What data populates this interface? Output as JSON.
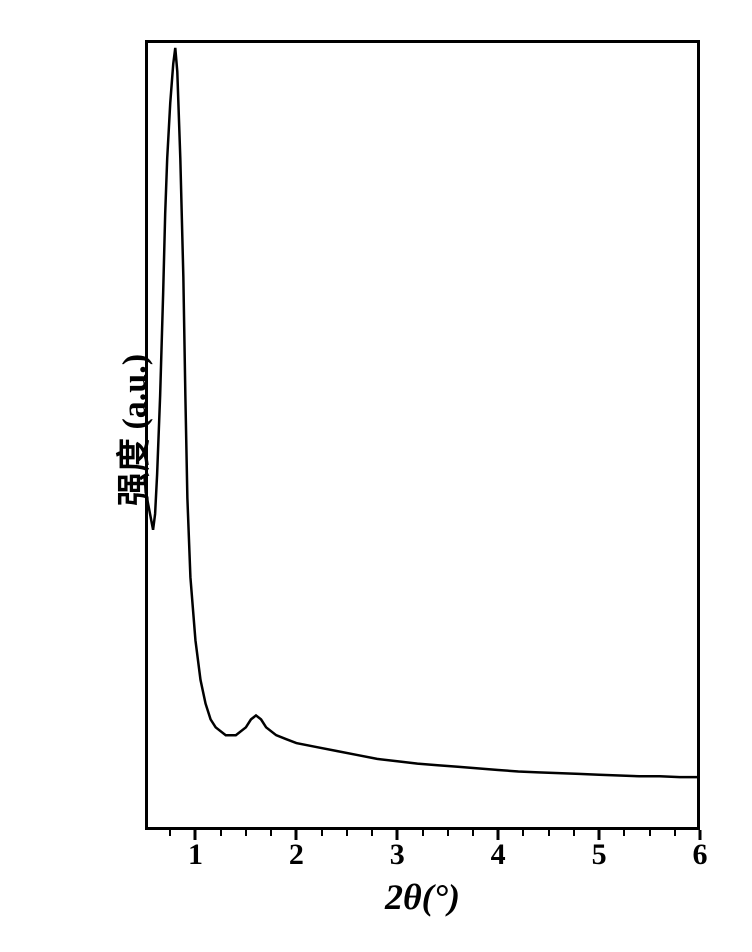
{
  "chart": {
    "type": "line",
    "x_label": "2θ(°)",
    "y_label": "强度 (a.u.)",
    "x_tick_labels": [
      "1",
      "2",
      "3",
      "4",
      "5",
      "6"
    ],
    "x_tick_positions": [
      1,
      2,
      3,
      4,
      5,
      6
    ],
    "x_minor_tick_positions": [
      0.75,
      1.25,
      1.5,
      1.75,
      2.25,
      2.5,
      2.75,
      3.25,
      3.5,
      3.75,
      4.25,
      4.5,
      4.75,
      5.25,
      5.5,
      5.75
    ],
    "xlim": [
      0.5,
      6.0
    ],
    "ylim": [
      0,
      100
    ],
    "line_color": "#000000",
    "line_width": 2.5,
    "background_color": "#ffffff",
    "border_color": "#000000",
    "border_width": 3,
    "label_fontsize": 34,
    "tick_fontsize": 30,
    "data_points": [
      {
        "x": 0.52,
        "y": 42
      },
      {
        "x": 0.55,
        "y": 40
      },
      {
        "x": 0.58,
        "y": 38
      },
      {
        "x": 0.6,
        "y": 40
      },
      {
        "x": 0.62,
        "y": 45
      },
      {
        "x": 0.65,
        "y": 55
      },
      {
        "x": 0.68,
        "y": 68
      },
      {
        "x": 0.7,
        "y": 78
      },
      {
        "x": 0.72,
        "y": 85
      },
      {
        "x": 0.75,
        "y": 92
      },
      {
        "x": 0.78,
        "y": 97
      },
      {
        "x": 0.8,
        "y": 99
      },
      {
        "x": 0.82,
        "y": 96
      },
      {
        "x": 0.85,
        "y": 85
      },
      {
        "x": 0.88,
        "y": 70
      },
      {
        "x": 0.9,
        "y": 55
      },
      {
        "x": 0.92,
        "y": 42
      },
      {
        "x": 0.95,
        "y": 32
      },
      {
        "x": 1.0,
        "y": 24
      },
      {
        "x": 1.05,
        "y": 19
      },
      {
        "x": 1.1,
        "y": 16
      },
      {
        "x": 1.15,
        "y": 14
      },
      {
        "x": 1.2,
        "y": 13
      },
      {
        "x": 1.3,
        "y": 12
      },
      {
        "x": 1.4,
        "y": 12
      },
      {
        "x": 1.5,
        "y": 13
      },
      {
        "x": 1.55,
        "y": 14
      },
      {
        "x": 1.6,
        "y": 14.5
      },
      {
        "x": 1.65,
        "y": 14
      },
      {
        "x": 1.7,
        "y": 13
      },
      {
        "x": 1.8,
        "y": 12
      },
      {
        "x": 1.9,
        "y": 11.5
      },
      {
        "x": 2.0,
        "y": 11
      },
      {
        "x": 2.2,
        "y": 10.5
      },
      {
        "x": 2.4,
        "y": 10
      },
      {
        "x": 2.6,
        "y": 9.5
      },
      {
        "x": 2.8,
        "y": 9
      },
      {
        "x": 3.0,
        "y": 8.7
      },
      {
        "x": 3.2,
        "y": 8.4
      },
      {
        "x": 3.4,
        "y": 8.2
      },
      {
        "x": 3.6,
        "y": 8
      },
      {
        "x": 3.8,
        "y": 7.8
      },
      {
        "x": 4.0,
        "y": 7.6
      },
      {
        "x": 4.2,
        "y": 7.4
      },
      {
        "x": 4.4,
        "y": 7.3
      },
      {
        "x": 4.6,
        "y": 7.2
      },
      {
        "x": 4.8,
        "y": 7.1
      },
      {
        "x": 5.0,
        "y": 7
      },
      {
        "x": 5.2,
        "y": 6.9
      },
      {
        "x": 5.4,
        "y": 6.8
      },
      {
        "x": 5.6,
        "y": 6.8
      },
      {
        "x": 5.8,
        "y": 6.7
      },
      {
        "x": 6.0,
        "y": 6.7
      }
    ]
  }
}
